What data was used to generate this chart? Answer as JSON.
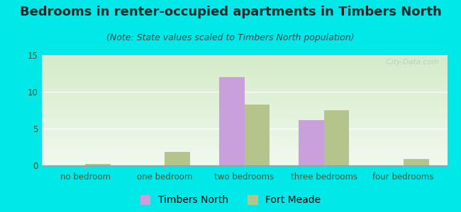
{
  "title": "Bedrooms in renter-occupied apartments in Timbers North",
  "subtitle": "(Note: State values scaled to Timbers North population)",
  "categories": [
    "no bedroom",
    "one bedroom",
    "two bedrooms",
    "three bedrooms",
    "four bedrooms"
  ],
  "timbers_north": [
    0,
    0,
    12,
    6.2,
    0
  ],
  "fort_meade": [
    0.2,
    1.8,
    8.3,
    7.5,
    0.9
  ],
  "timbers_color": "#c9a0dc",
  "fort_meade_color": "#b5c48a",
  "bg_color": "#00e8e8",
  "plot_bg_top": "#f0f8ee",
  "plot_bg_bottom": "#d4ebc8",
  "ylim": [
    0,
    15
  ],
  "yticks": [
    0,
    5,
    10,
    15
  ],
  "title_fontsize": 13,
  "subtitle_fontsize": 9,
  "tick_fontsize": 8.5,
  "legend_fontsize": 10,
  "bar_width": 0.32,
  "watermark": "  City-Data.com"
}
